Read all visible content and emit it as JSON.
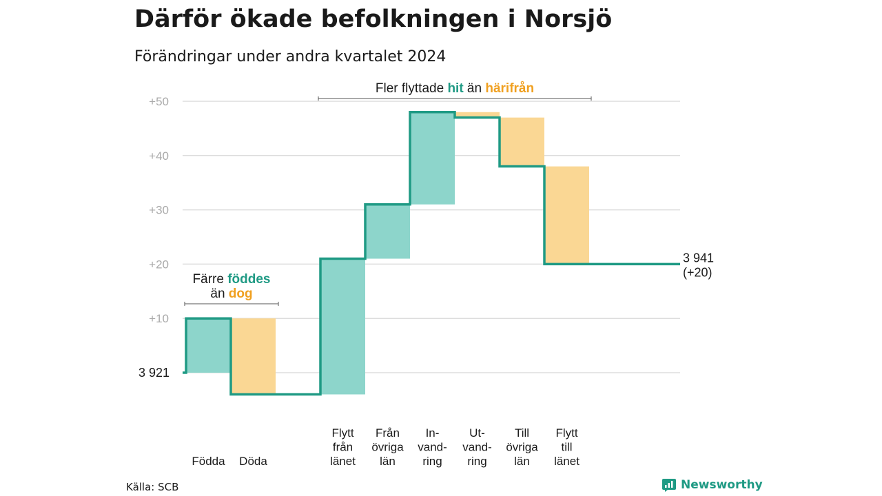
{
  "title": "Därför ökade befolkningen i Norsjö",
  "subtitle": "Förändringar under andra kvartalet 2024",
  "source": "Källa: SCB",
  "brand": {
    "name": "Newsworthy",
    "icon": "bar-chart-logo-icon"
  },
  "colors": {
    "positive": "#8dd5cb",
    "negative": "#fad794",
    "line": "#1f9a84",
    "accent_positive": "#1f9a84",
    "accent_negative": "#f0a020",
    "grid": "#dddddd",
    "tick": "#aaaaaa"
  },
  "chart_data": {
    "type": "waterfall",
    "baseline": 3921,
    "start_label": "3 921",
    "end_value": 3941,
    "end_label": [
      "3 941",
      "(+20)"
    ],
    "ylim": [
      -4,
      50
    ],
    "yticks": [
      {
        "value": 10,
        "label": "+10"
      },
      {
        "value": 20,
        "label": "+20"
      },
      {
        "value": 30,
        "label": "+30"
      },
      {
        "value": 40,
        "label": "+40"
      },
      {
        "value": 50,
        "label": "+50"
      }
    ],
    "grid": true,
    "steps": [
      {
        "label": [
          "Födda"
        ],
        "change": 10,
        "kind": "positive"
      },
      {
        "label": [
          "Döda"
        ],
        "change": -14,
        "kind": "negative"
      },
      {
        "label": [],
        "change": 0,
        "kind": "gap"
      },
      {
        "label": [
          "Flytt",
          "från",
          "länet"
        ],
        "change": 25,
        "kind": "positive"
      },
      {
        "label": [
          "Från",
          "övriga",
          "län"
        ],
        "change": 10,
        "kind": "positive"
      },
      {
        "label": [
          "In-",
          "vand-",
          "ring"
        ],
        "change": 17,
        "kind": "positive"
      },
      {
        "label": [
          "Ut-",
          "vand-",
          "ring"
        ],
        "change": -1,
        "kind": "negative"
      },
      {
        "label": [
          "Till",
          "övriga",
          "län"
        ],
        "change": -9,
        "kind": "negative"
      },
      {
        "label": [
          "Flytt",
          "till",
          "länet"
        ],
        "change": -18,
        "kind": "negative"
      }
    ],
    "annotations": [
      {
        "id": "births-deaths",
        "lines": [
          [
            {
              "text": "Färre ",
              "style": "plain"
            },
            {
              "text": "föddes",
              "style": "positive"
            }
          ],
          [
            {
              "text": "än ",
              "style": "plain"
            },
            {
              "text": "dog",
              "style": "negative"
            }
          ]
        ],
        "from_step": 0,
        "to_step": 1
      },
      {
        "id": "migration",
        "lines": [
          [
            {
              "text": "Fler flyttade ",
              "style": "plain"
            },
            {
              "text": "hit",
              "style": "positive"
            },
            {
              "text": " än ",
              "style": "plain"
            },
            {
              "text": "härifrån",
              "style": "negative"
            }
          ]
        ],
        "from_step": 3,
        "to_step": 8
      }
    ]
  }
}
